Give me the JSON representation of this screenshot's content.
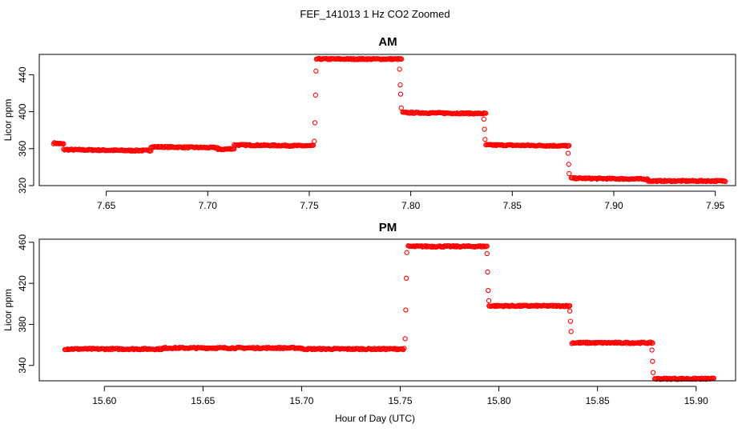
{
  "figure": {
    "title": "FEF_141013  1 Hz CO2 Zoomed",
    "xlabel": "Hour of Day (UTC)"
  },
  "chart_data": [
    {
      "type": "scatter",
      "title": "AM",
      "xlabel": "Hour of Day (UTC)",
      "ylabel": "Licor ppm",
      "xlim": [
        7.617,
        7.96
      ],
      "ylim": [
        320,
        462
      ],
      "xticks": [
        7.65,
        7.7,
        7.75,
        7.8,
        7.85,
        7.9,
        7.95
      ],
      "xtick_labels": [
        "7.65",
        "7.70",
        "7.75",
        "7.80",
        "7.85",
        "7.90",
        "7.95"
      ],
      "yticks": [
        320,
        360,
        400,
        440
      ],
      "ytick_labels": [
        "320",
        "360",
        "400",
        "440"
      ],
      "grid": false,
      "marker": "open-circle",
      "color": "#ff0000",
      "series": [
        {
          "segments": [
            {
              "x": [
                7.624,
                7.629
              ],
              "y": [
                366,
                365
              ]
            },
            {
              "x": [
                7.629,
                7.66
              ],
              "y": [
                359,
                358
              ]
            },
            {
              "x": [
                7.66,
                7.672
              ],
              "y": [
                358,
                358
              ]
            },
            {
              "x": [
                7.672,
                7.705
              ],
              "y": [
                362,
                361
              ]
            },
            {
              "x": [
                7.705,
                7.713
              ],
              "y": [
                359,
                360
              ]
            },
            {
              "x": [
                7.713,
                7.752
              ],
              "y": [
                364,
                363
              ]
            },
            {
              "x": [
                7.7535,
                7.7955
              ],
              "y": [
                457,
                457
              ]
            },
            {
              "x": [
                7.796,
                7.837
              ],
              "y": [
                399,
                398
              ]
            },
            {
              "x": [
                7.837,
                7.878
              ],
              "y": [
                364,
                363
              ]
            },
            {
              "x": [
                7.879,
                7.917
              ],
              "y": [
                328,
                327
              ]
            },
            {
              "x": [
                7.917,
                7.955
              ],
              "y": [
                325,
                325
              ]
            }
          ],
          "transition_points": [
            {
              "x": 7.7525,
              "y": 368
            },
            {
              "x": 7.7528,
              "y": 388
            },
            {
              "x": 7.7531,
              "y": 418
            },
            {
              "x": 7.7533,
              "y": 444
            },
            {
              "x": 7.7945,
              "y": 446
            },
            {
              "x": 7.7948,
              "y": 429
            },
            {
              "x": 7.795,
              "y": 419
            },
            {
              "x": 7.7953,
              "y": 404
            },
            {
              "x": 7.836,
              "y": 392
            },
            {
              "x": 7.8363,
              "y": 381
            },
            {
              "x": 7.8366,
              "y": 370
            },
            {
              "x": 7.8775,
              "y": 355
            },
            {
              "x": 7.8778,
              "y": 343
            },
            {
              "x": 7.878,
              "y": 333
            }
          ]
        }
      ]
    },
    {
      "type": "scatter",
      "title": "PM",
      "xlabel": "Hour of Day (UTC)",
      "ylabel": "Licor ppm",
      "xlim": [
        15.567,
        15.92
      ],
      "ylim": [
        325,
        463
      ],
      "xticks": [
        15.6,
        15.65,
        15.7,
        15.75,
        15.8,
        15.85,
        15.9
      ],
      "xtick_labels": [
        "15.60",
        "15.65",
        "15.70",
        "15.75",
        "15.80",
        "15.85",
        "15.90"
      ],
      "yticks": [
        340,
        380,
        420,
        460
      ],
      "ytick_labels": [
        "340",
        "380",
        "420",
        "460"
      ],
      "grid": false,
      "marker": "open-circle",
      "color": "#ff0000",
      "series": [
        {
          "segments": [
            {
              "x": [
                15.58,
                15.63
              ],
              "y": [
                356,
                356
              ]
            },
            {
              "x": [
                15.63,
                15.7
              ],
              "y": [
                357,
                357
              ]
            },
            {
              "x": [
                15.7,
                15.752
              ],
              "y": [
                356,
                356
              ]
            },
            {
              "x": [
                15.754,
                15.794
              ],
              "y": [
                456,
                456
              ]
            },
            {
              "x": [
                15.795,
                15.836
              ],
              "y": [
                398,
                398
              ]
            },
            {
              "x": [
                15.837,
                15.878
              ],
              "y": [
                362,
                362
              ]
            },
            {
              "x": [
                15.879,
                15.909
              ],
              "y": [
                327,
                327
              ]
            }
          ],
          "transition_points": [
            {
              "x": 15.7525,
              "y": 366
            },
            {
              "x": 15.7528,
              "y": 394
            },
            {
              "x": 15.7531,
              "y": 425
            },
            {
              "x": 15.7533,
              "y": 450
            },
            {
              "x": 15.794,
              "y": 449
            },
            {
              "x": 15.7943,
              "y": 431
            },
            {
              "x": 15.7946,
              "y": 413
            },
            {
              "x": 15.7949,
              "y": 403
            },
            {
              "x": 15.836,
              "y": 393
            },
            {
              "x": 15.8363,
              "y": 383
            },
            {
              "x": 15.8366,
              "y": 373
            },
            {
              "x": 15.8776,
              "y": 355
            },
            {
              "x": 15.8779,
              "y": 344
            },
            {
              "x": 15.8782,
              "y": 333
            }
          ]
        }
      ]
    }
  ]
}
